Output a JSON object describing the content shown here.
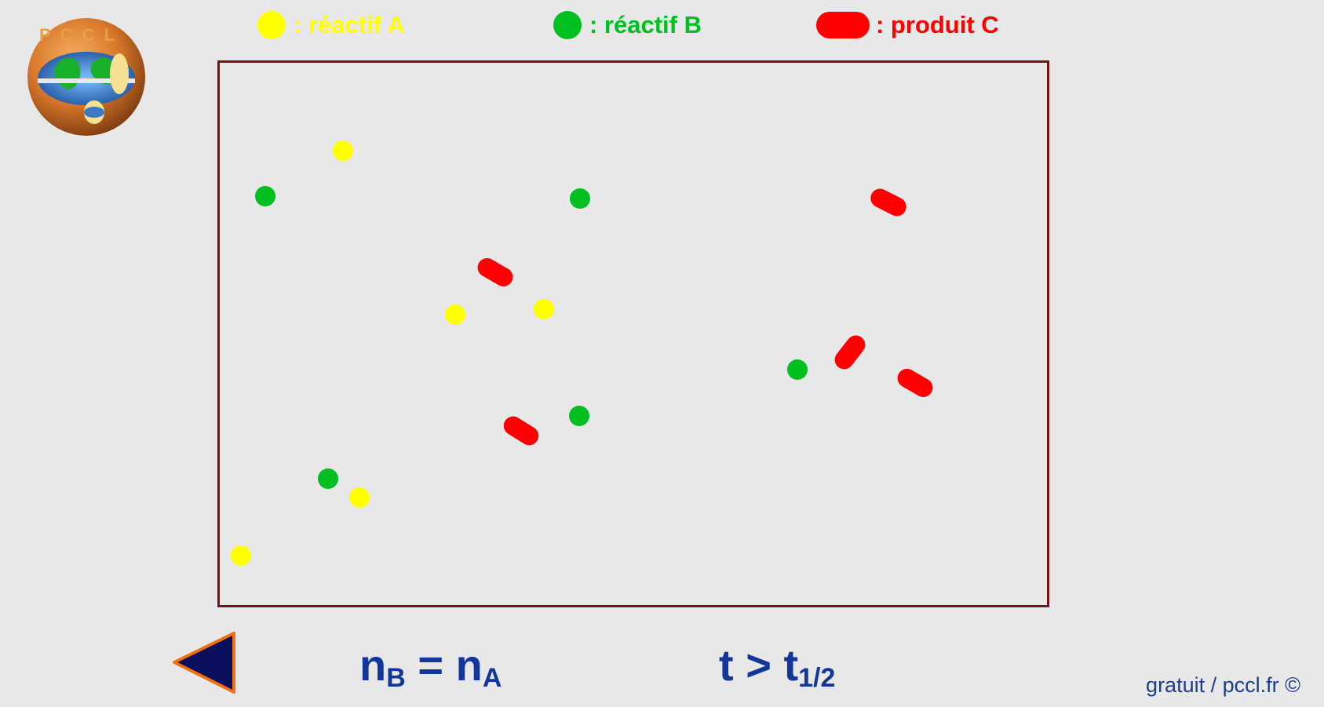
{
  "logo": {
    "text": "PCCL"
  },
  "legend": [
    {
      "id": "a",
      "symbol": "dot",
      "color": "#ffff00",
      "label": ": réactif A"
    },
    {
      "id": "b",
      "symbol": "dot",
      "color": "#00c020",
      "label": ": réactif B"
    },
    {
      "id": "c",
      "symbol": "pill",
      "color": "#ff0000",
      "label": ": produit C"
    }
  ],
  "colors": {
    "reactif_a": "#ffff00",
    "reactif_b": "#00c020",
    "produit_c": "#ff0000",
    "vessel_border": "#7a1010",
    "formula_text": "#13369a",
    "back_fill": "#0a0f5e",
    "back_stroke": "#f07010"
  },
  "formula": {
    "n_left": "n",
    "n_left_sub": "B",
    "eq": " = ",
    "n_right": "n",
    "n_right_sub": "A",
    "t_main": "t > t",
    "t_sub": "1/2"
  },
  "back_button_icon": "triangle-left-icon",
  "footer": {
    "text": "gratuit / pccl.fr ©"
  }
}
